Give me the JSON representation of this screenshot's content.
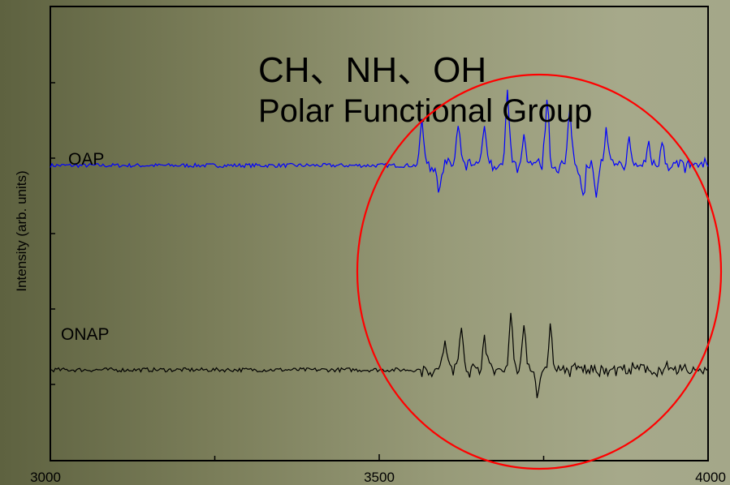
{
  "chart_data": {
    "type": "line",
    "title": "",
    "xlabel": "",
    "ylabel": "Intensity (arb. units)",
    "xlim": [
      3000,
      4000
    ],
    "x_ticks": [
      "3000",
      "3500",
      "4000"
    ],
    "y_ticks_labeled": false,
    "grid": false,
    "annotations": {
      "line1": "CH、NH、OH",
      "line2": "Polar Functional Group"
    },
    "highlight": {
      "shape": "ellipse",
      "color": "#ff0000",
      "x_range": [
        3460,
        4010
      ]
    },
    "series": [
      {
        "name": "OAP",
        "color": "#0000ff",
        "offset": 0.65,
        "peaks": [
          {
            "x": 3565,
            "h": 0.1
          },
          {
            "x": 3590,
            "h": -0.05
          },
          {
            "x": 3620,
            "h": 0.08
          },
          {
            "x": 3660,
            "h": 0.09
          },
          {
            "x": 3695,
            "h": 0.16
          },
          {
            "x": 3720,
            "h": 0.06
          },
          {
            "x": 3755,
            "h": 0.14
          },
          {
            "x": 3790,
            "h": 0.12
          },
          {
            "x": 3810,
            "h": -0.06
          },
          {
            "x": 3830,
            "h": -0.06
          },
          {
            "x": 3845,
            "h": 0.07
          },
          {
            "x": 3880,
            "h": 0.05
          },
          {
            "x": 3910,
            "h": 0.05
          },
          {
            "x": 3930,
            "h": 0.06
          }
        ]
      },
      {
        "name": "ONAP",
        "color": "#000000",
        "offset": 0.2,
        "peaks": [
          {
            "x": 3600,
            "h": 0.07
          },
          {
            "x": 3625,
            "h": 0.1
          },
          {
            "x": 3660,
            "h": 0.08
          },
          {
            "x": 3700,
            "h": 0.12
          },
          {
            "x": 3720,
            "h": 0.1
          },
          {
            "x": 3740,
            "h": -0.06
          },
          {
            "x": 3760,
            "h": 0.09
          }
        ]
      }
    ]
  }
}
